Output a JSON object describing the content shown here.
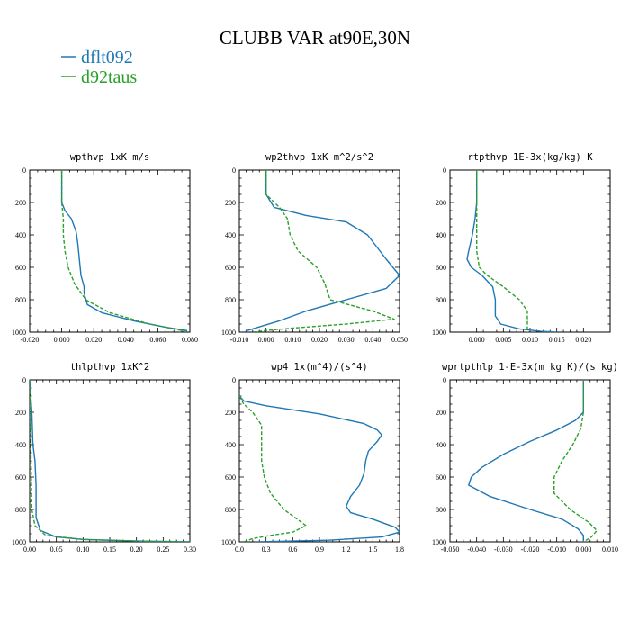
{
  "figure": {
    "title": "CLUBB VAR at90E,30N",
    "legend": [
      {
        "name": "dflt092",
        "color": "#1f77b4"
      },
      {
        "name": "d92taus",
        "color": "#2ca02c"
      }
    ]
  },
  "chart_data": [
    {
      "type": "line",
      "title": "wpthvp  1xK m/s",
      "xlim": [
        -0.02,
        0.08
      ],
      "xticks": [
        "-0.020",
        "0.000",
        "0.020",
        "0.040",
        "0.060",
        "0.080"
      ],
      "xtick_values": [
        -0.02,
        0,
        0.02,
        0.04,
        0.06,
        0.08
      ],
      "ylim": [
        1000,
        0
      ],
      "yticks": [
        "0",
        "200",
        "400",
        "600",
        "800",
        "1000"
      ],
      "ytick_values": [
        0,
        200,
        400,
        600,
        800,
        1000
      ],
      "series": [
        {
          "name": "dflt092",
          "color": "#1f77b4",
          "dash": "",
          "points": [
            [
              0.0,
              0
            ],
            [
              0.0,
              100
            ],
            [
              0.0,
              200
            ],
            [
              0.002,
              250
            ],
            [
              0.006,
              300
            ],
            [
              0.009,
              380
            ],
            [
              0.01,
              450
            ],
            [
              0.011,
              550
            ],
            [
              0.012,
              650
            ],
            [
              0.014,
              720
            ],
            [
              0.014,
              760
            ],
            [
              0.016,
              830
            ],
            [
              0.025,
              880
            ],
            [
              0.045,
              930
            ],
            [
              0.065,
              970
            ],
            [
              0.078,
              990
            ],
            [
              0.078,
              1000
            ]
          ]
        },
        {
          "name": "d92taus",
          "color": "#2ca02c",
          "dash": "4,2",
          "points": [
            [
              0.0,
              0
            ],
            [
              0.0,
              100
            ],
            [
              0.0,
              200
            ],
            [
              0.001,
              300
            ],
            [
              0.001,
              400
            ],
            [
              0.002,
              500
            ],
            [
              0.004,
              600
            ],
            [
              0.008,
              700
            ],
            [
              0.015,
              800
            ],
            [
              0.03,
              880
            ],
            [
              0.055,
              950
            ],
            [
              0.075,
              990
            ],
            [
              0.078,
              1000
            ]
          ]
        }
      ]
    },
    {
      "type": "line",
      "title": "wp2thvp  1xK m^2/s^2",
      "xlim": [
        -0.01,
        0.05
      ],
      "xticks": [
        "-0.010",
        "0.000",
        "0.010",
        "0.020",
        "0.030",
        "0.040",
        "0.050"
      ],
      "xtick_values": [
        -0.01,
        0,
        0.01,
        0.02,
        0.03,
        0.04,
        0.05
      ],
      "ylim": [
        1000,
        0
      ],
      "yticks": [
        "0",
        "200",
        "400",
        "600",
        "800",
        "1000"
      ],
      "ytick_values": [
        0,
        200,
        400,
        600,
        800,
        1000
      ],
      "series": [
        {
          "name": "dflt092",
          "color": "#1f77b4",
          "dash": "",
          "points": [
            [
              0.0,
              0
            ],
            [
              0.0,
              100
            ],
            [
              0.0,
              150
            ],
            [
              0.003,
              230
            ],
            [
              0.015,
              280
            ],
            [
              0.03,
              320
            ],
            [
              0.038,
              400
            ],
            [
              0.045,
              550
            ],
            [
              0.05,
              650
            ],
            [
              0.045,
              730
            ],
            [
              0.03,
              800
            ],
            [
              0.015,
              870
            ],
            [
              0.005,
              930
            ],
            [
              -0.003,
              970
            ],
            [
              -0.007,
              990
            ],
            [
              -0.008,
              1000
            ]
          ]
        },
        {
          "name": "d92taus",
          "color": "#2ca02c",
          "dash": "4,2",
          "points": [
            [
              0.0,
              0
            ],
            [
              0.0,
              100
            ],
            [
              0.0,
              150
            ],
            [
              0.005,
              230
            ],
            [
              0.008,
              300
            ],
            [
              0.009,
              400
            ],
            [
              0.012,
              500
            ],
            [
              0.019,
              600
            ],
            [
              0.022,
              700
            ],
            [
              0.024,
              800
            ],
            [
              0.04,
              870
            ],
            [
              0.048,
              920
            ],
            [
              0.03,
              950
            ],
            [
              0.01,
              975
            ],
            [
              0.0,
              990
            ],
            [
              -0.005,
              1000
            ]
          ]
        }
      ]
    },
    {
      "type": "line",
      "title": "rtpthvp  1E-3x(kg/kg) K",
      "xlim": [
        -0.005,
        0.025
      ],
      "xticks": [
        "0.000",
        "0.005",
        "0.010",
        "0.015",
        "0.020"
      ],
      "xtick_values": [
        0,
        0.005,
        0.01,
        0.015,
        0.02
      ],
      "ylim": [
        1000,
        0
      ],
      "yticks": [
        "0",
        "200",
        "400",
        "600",
        "800",
        "1000"
      ],
      "ytick_values": [
        0,
        200,
        400,
        600,
        800,
        1000
      ],
      "series": [
        {
          "name": "dflt092",
          "color": "#1f77b4",
          "dash": "",
          "points": [
            [
              0.0,
              0
            ],
            [
              0.0,
              100
            ],
            [
              0.0,
              200
            ],
            [
              -0.0003,
              300
            ],
            [
              -0.0008,
              400
            ],
            [
              -0.0015,
              500
            ],
            [
              -0.0018,
              550
            ],
            [
              -0.001,
              600
            ],
            [
              0.001,
              650
            ],
            [
              0.003,
              720
            ],
            [
              0.0035,
              800
            ],
            [
              0.0035,
              900
            ],
            [
              0.0045,
              950
            ],
            [
              0.008,
              980
            ],
            [
              0.012,
              995
            ],
            [
              0.015,
              1000
            ]
          ]
        },
        {
          "name": "d92taus",
          "color": "#2ca02c",
          "dash": "4,2",
          "points": [
            [
              0.0,
              0
            ],
            [
              0.0,
              100
            ],
            [
              0.0,
              200
            ],
            [
              0.0,
              300
            ],
            [
              0.0,
              400
            ],
            [
              0.0,
              500
            ],
            [
              0.0005,
              600
            ],
            [
              0.002,
              650
            ],
            [
              0.005,
              720
            ],
            [
              0.008,
              800
            ],
            [
              0.0095,
              870
            ],
            [
              0.0095,
              920
            ],
            [
              0.0095,
              1000
            ]
          ]
        }
      ]
    },
    {
      "type": "line",
      "title": "thlpthvp  1xK^2",
      "xlim": [
        0.0,
        0.3
      ],
      "xticks": [
        "0.00",
        "0.05",
        "0.10",
        "0.15",
        "0.20",
        "0.25",
        "0.30"
      ],
      "xtick_values": [
        0,
        0.05,
        0.1,
        0.15,
        0.2,
        0.25,
        0.3
      ],
      "ylim": [
        1000,
        0
      ],
      "yticks": [
        "0",
        "200",
        "400",
        "600",
        "800",
        "1000"
      ],
      "ytick_values": [
        0,
        200,
        400,
        600,
        800,
        1000
      ],
      "series": [
        {
          "name": "dflt092",
          "color": "#1f77b4",
          "dash": "",
          "points": [
            [
              0.0,
              0
            ],
            [
              0.002,
              100
            ],
            [
              0.004,
              200
            ],
            [
              0.006,
              400
            ],
            [
              0.01,
              500
            ],
            [
              0.012,
              650
            ],
            [
              0.012,
              750
            ],
            [
              0.012,
              850
            ],
            [
              0.02,
              930
            ],
            [
              0.05,
              970
            ],
            [
              0.1,
              985
            ],
            [
              0.2,
              995
            ],
            [
              0.3,
              1000
            ]
          ]
        },
        {
          "name": "d92taus",
          "color": "#2ca02c",
          "dash": "4,2",
          "points": [
            [
              0.0,
              0
            ],
            [
              0.001,
              200
            ],
            [
              0.002,
              400
            ],
            [
              0.003,
              600
            ],
            [
              0.004,
              800
            ],
            [
              0.01,
              900
            ],
            [
              0.03,
              960
            ],
            [
              0.1,
              985
            ],
            [
              0.2,
              995
            ],
            [
              0.3,
              1000
            ]
          ]
        }
      ]
    },
    {
      "type": "line",
      "title": "wp4  1x(m^4)/(s^4)",
      "xlim": [
        0.0,
        1.8
      ],
      "xticks": [
        "0.0",
        "0.3",
        "0.6",
        "0.9",
        "1.2",
        "1.5",
        "1.8"
      ],
      "xtick_values": [
        0,
        0.3,
        0.6,
        0.9,
        1.2,
        1.5,
        1.8
      ],
      "ylim": [
        1000,
        0
      ],
      "yticks": [
        "0",
        "200",
        "400",
        "600",
        "800",
        "1000"
      ],
      "ytick_values": [
        0,
        200,
        400,
        600,
        800,
        1000
      ],
      "series": [
        {
          "name": "dflt092",
          "color": "#1f77b4",
          "dash": "",
          "points": [
            [
              0.0,
              100
            ],
            [
              0.05,
              130
            ],
            [
              0.3,
              160
            ],
            [
              0.9,
              210
            ],
            [
              1.4,
              270
            ],
            [
              1.55,
              310
            ],
            [
              1.6,
              340
            ],
            [
              1.55,
              380
            ],
            [
              1.45,
              440
            ],
            [
              1.42,
              500
            ],
            [
              1.4,
              580
            ],
            [
              1.35,
              650
            ],
            [
              1.25,
              720
            ],
            [
              1.2,
              780
            ],
            [
              1.25,
              820
            ],
            [
              1.5,
              860
            ],
            [
              1.75,
              910
            ],
            [
              1.8,
              940
            ],
            [
              1.6,
              970
            ],
            [
              1.0,
              990
            ],
            [
              0.2,
              1000
            ]
          ]
        },
        {
          "name": "d92taus",
          "color": "#2ca02c",
          "dash": "4,2",
          "points": [
            [
              0.0,
              100
            ],
            [
              0.05,
              150
            ],
            [
              0.15,
              200
            ],
            [
              0.25,
              280
            ],
            [
              0.25,
              400
            ],
            [
              0.25,
              500
            ],
            [
              0.28,
              600
            ],
            [
              0.35,
              700
            ],
            [
              0.5,
              800
            ],
            [
              0.75,
              900
            ],
            [
              0.6,
              940
            ],
            [
              0.35,
              960
            ],
            [
              0.15,
              980
            ],
            [
              0.05,
              1000
            ]
          ]
        }
      ]
    },
    {
      "type": "line",
      "title": "wprtpthlp  1-E-3x(m kg K)/(s kg)",
      "xlim": [
        -0.05,
        0.01
      ],
      "xticks": [
        "-0.050",
        "-0.040",
        "-0.030",
        "-0.020",
        "-0.010",
        "0.000",
        "0.010"
      ],
      "xtick_values": [
        -0.05,
        -0.04,
        -0.03,
        -0.02,
        -0.01,
        0,
        0.01
      ],
      "ylim": [
        1000,
        0
      ],
      "yticks": [
        "0",
        "200",
        "400",
        "600",
        "800",
        "1000"
      ],
      "ytick_values": [
        0,
        200,
        400,
        600,
        800,
        1000
      ],
      "series": [
        {
          "name": "dflt092",
          "color": "#1f77b4",
          "dash": "",
          "points": [
            [
              0.0,
              0
            ],
            [
              0.0,
              100
            ],
            [
              0.0,
              200
            ],
            [
              -0.003,
              250
            ],
            [
              -0.01,
              310
            ],
            [
              -0.02,
              380
            ],
            [
              -0.03,
              460
            ],
            [
              -0.038,
              540
            ],
            [
              -0.042,
              600
            ],
            [
              -0.043,
              650
            ],
            [
              -0.035,
              720
            ],
            [
              -0.02,
              800
            ],
            [
              -0.008,
              860
            ],
            [
              -0.002,
              920
            ],
            [
              0.0,
              960
            ],
            [
              0.0,
              1000
            ]
          ]
        },
        {
          "name": "d92taus",
          "color": "#2ca02c",
          "dash": "4,2",
          "points": [
            [
              0.0,
              0
            ],
            [
              0.0,
              100
            ],
            [
              0.0,
              200
            ],
            [
              -0.001,
              300
            ],
            [
              -0.004,
              400
            ],
            [
              -0.008,
              500
            ],
            [
              -0.011,
              600
            ],
            [
              -0.011,
              700
            ],
            [
              -0.005,
              800
            ],
            [
              0.002,
              880
            ],
            [
              0.005,
              930
            ],
            [
              0.003,
              970
            ],
            [
              0.0,
              1000
            ]
          ]
        }
      ]
    }
  ]
}
